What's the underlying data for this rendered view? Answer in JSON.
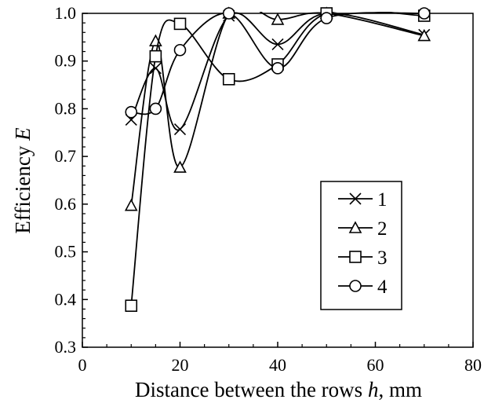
{
  "chart_data": {
    "type": "line",
    "xlabel": {
      "main": "Distance between the rows ",
      "var": "h",
      "unit": ", mm"
    },
    "ylabel": {
      "main": "Efficiency ",
      "var": "E"
    },
    "xlim": [
      0,
      80
    ],
    "ylim": [
      0.3,
      1.0
    ],
    "xticks": [
      "0",
      "20",
      "40",
      "60",
      "80"
    ],
    "yticks": [
      "0.3",
      "0.4",
      "0.5",
      "0.6",
      "0.7",
      "0.8",
      "0.9",
      "1.0"
    ],
    "grid": false,
    "legend_position": "lower-right",
    "smooth": true,
    "series": [
      {
        "name": "1",
        "marker": "x",
        "x": [
          10,
          15,
          20,
          30,
          40,
          50,
          70
        ],
        "y": [
          0.777,
          0.885,
          0.757,
          0.995,
          0.935,
          1.0,
          0.955
        ]
      },
      {
        "name": "2",
        "marker": "triangle",
        "x": [
          10,
          15,
          20,
          30,
          40,
          50,
          70
        ],
        "y": [
          0.597,
          0.942,
          0.677,
          1.0,
          0.987,
          1.0,
          0.953
        ]
      },
      {
        "name": "3",
        "marker": "square",
        "x": [
          10,
          15,
          20,
          30,
          40,
          50,
          70
        ],
        "y": [
          0.387,
          0.91,
          0.978,
          0.862,
          0.893,
          1.0,
          0.995
        ]
      },
      {
        "name": "4",
        "marker": "circle",
        "x": [
          10,
          15,
          20,
          30,
          40,
          50,
          70
        ],
        "y": [
          0.793,
          0.8,
          0.923,
          1.0,
          0.885,
          0.99,
          1.0
        ]
      }
    ]
  }
}
